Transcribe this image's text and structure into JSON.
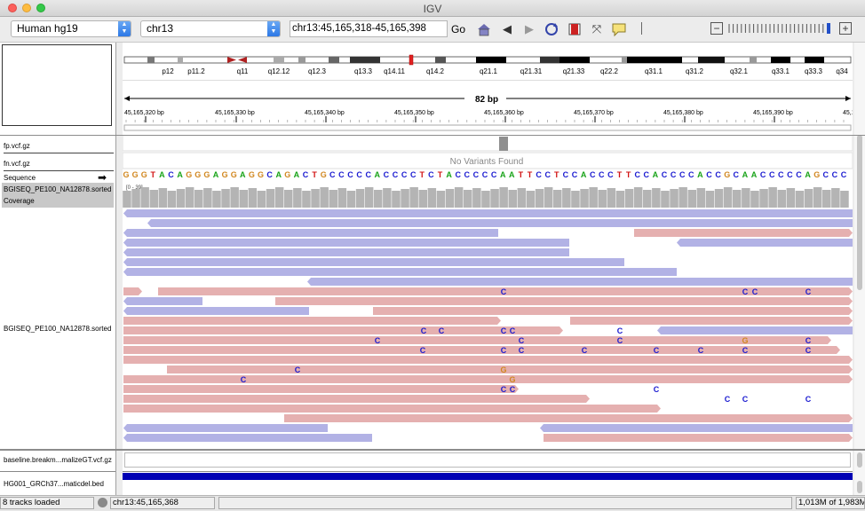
{
  "window": {
    "title": "IGV"
  },
  "toolbar": {
    "genome": "Human hg19",
    "chromosome": "chr13",
    "locus": "chr13:45,165,318-45,165,398",
    "go_label": "Go"
  },
  "ideogram": {
    "bands": [
      "p12",
      "p11.2",
      "q11",
      "q12.12",
      "q12.3",
      "q13.3",
      "q14.11",
      "q14.2",
      "q21.1",
      "q21.31",
      "q21.33",
      "q22.2",
      "q31.1",
      "q31.2",
      "q32.1",
      "q33.1",
      "q33.3",
      "q34"
    ]
  },
  "ruler": {
    "span_label": "82 bp",
    "ticks": [
      "45,165,320 bp",
      "45,165,330 bp",
      "45,165,340 bp",
      "45,165,350 bp",
      "45,165,360 bp",
      "45,165,370 bp",
      "45,165,380 bp",
      "45,165,390 bp",
      "45,1"
    ]
  },
  "tracks": {
    "fp_name": "fp.vcf.gz",
    "fn_name": "fn.vcf.gz",
    "no_variants": "No Variants Found",
    "sequence_name": "Sequence",
    "bam_coverage_name": "BGISEQ_PE100_NA12878.sorted",
    "coverage_name": "Coverage",
    "coverage_range": "[0 - 39]",
    "bam_name": "BGISEQ_PE100_NA12878.sorted",
    "baseline_name": "baseline.breakm...malizeGT.vcf.gz",
    "bed_name": "HG001_GRCh37...maticdel.bed"
  },
  "sequence": "GGGTACAGGGAGGAGGCAGACTGCCCCCACCCCTCTACCCCCAATTCCTCCACCCTTCCACCCCACCGCAACCCCCAGCCC",
  "colors": {
    "A": "#18a318",
    "C": "#1a1ad0",
    "G": "#d1871f",
    "T": "#d21414",
    "read_forward": "#e5b0b0",
    "read_reverse": "#b2b2e5",
    "coverage": "#b4b4b4",
    "bed": "#0000b4"
  },
  "mismatches_text": [
    "C",
    "C",
    "C",
    "C",
    "C",
    "C",
    "C",
    "C",
    "C",
    "C",
    "C",
    "G",
    "C",
    "C",
    "C",
    "C",
    "C",
    "C",
    "C",
    "C",
    "C",
    "C",
    "G",
    "C",
    "G",
    "C",
    "C",
    "C",
    "C",
    "C",
    "C",
    "C"
  ],
  "status": {
    "tracks_loaded": "8 tracks loaded",
    "position": "chr13:45,165,368",
    "memory": "1,013M of 1,983M"
  }
}
